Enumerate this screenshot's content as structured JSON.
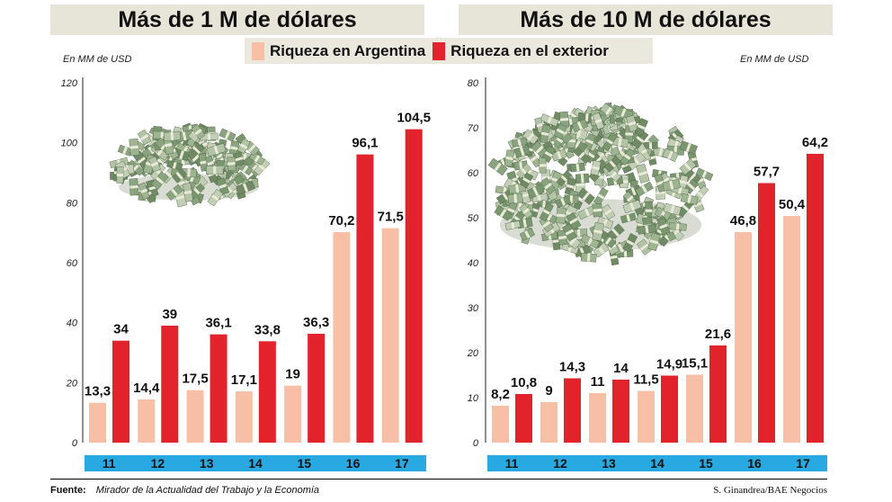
{
  "colors": {
    "argentina": "#f7c0a6",
    "exterior": "#e3232c",
    "axis_band": "#29a9e1",
    "panel_bg": "#e7e4d8"
  },
  "legend": {
    "argentina": "Riqueza en Argentina",
    "exterior": "Riqueza en el exterior"
  },
  "footer": {
    "source_label": "Fuente:",
    "source_text": "Mirador de la Actualidad del Trabajo y la Economía",
    "credit": "S. Ginandrea/BAE Negocios"
  },
  "image_description": [
    "stack-of-dollar-bills-small",
    "stack-of-dollar-bills-large"
  ],
  "chart_data": [
    {
      "type": "bar",
      "title": "Más de 1 M de dólares",
      "unit": "En MM de USD",
      "categories": [
        "11",
        "12",
        "13",
        "14",
        "15",
        "16",
        "17"
      ],
      "series": [
        {
          "name": "Riqueza en Argentina",
          "values": [
            13.3,
            14.4,
            17.5,
            17.1,
            19,
            70.2,
            71.5
          ],
          "labels": [
            "13,3",
            "14,4",
            "17,5",
            "17,1",
            "19",
            "70,2",
            "71,5"
          ]
        },
        {
          "name": "Riqueza en el exterior",
          "values": [
            34,
            39,
            36.1,
            33.8,
            36.3,
            96.1,
            104.5
          ],
          "labels": [
            "34",
            "39",
            "36,1",
            "33,8",
            "36,3",
            "96,1",
            "104,5"
          ]
        }
      ],
      "ylim": [
        0,
        120
      ],
      "yticks": [
        "0",
        "20",
        "40",
        "60",
        "80",
        "100",
        "120"
      ],
      "grid": false
    },
    {
      "type": "bar",
      "title": "Más de 10 M de dólares",
      "unit": "En MM de USD",
      "categories": [
        "11",
        "12",
        "13",
        "14",
        "15",
        "16",
        "17"
      ],
      "series": [
        {
          "name": "Riqueza en Argentina",
          "values": [
            8.2,
            9,
            11,
            11.5,
            15.1,
            46.8,
            50.4
          ],
          "labels": [
            "8,2",
            "9",
            "11",
            "11,5",
            "15,1",
            "46,8",
            "50,4"
          ]
        },
        {
          "name": "Riqueza en el exterior",
          "values": [
            10.8,
            14.3,
            14,
            14.9,
            21.6,
            57.7,
            64.2
          ],
          "labels": [
            "10,8",
            "14,3",
            "14",
            "14,9",
            "21,6",
            "57,7",
            "64,2"
          ]
        }
      ],
      "ylim": [
        0,
        80
      ],
      "yticks": [
        "0",
        "10",
        "20",
        "30",
        "40",
        "50",
        "60",
        "70",
        "80"
      ],
      "grid": false
    }
  ]
}
